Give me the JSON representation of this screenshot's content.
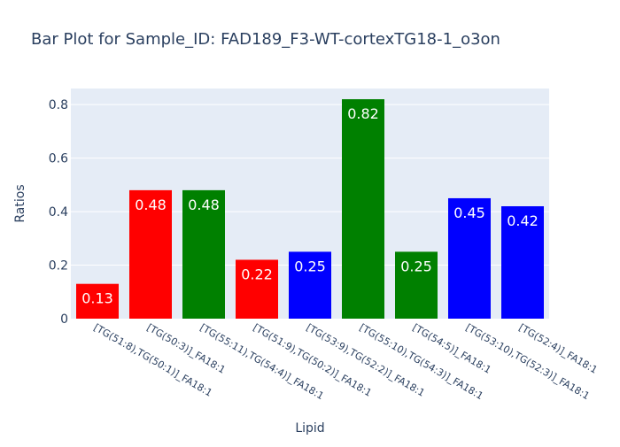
{
  "chart_data": {
    "type": "bar",
    "title": "Bar Plot for Sample_ID: FAD189_F3-WT-cortexTG18-1_o3on",
    "xlabel": "Lipid",
    "ylabel": "Ratios",
    "ylim": [
      0,
      0.86
    ],
    "yticks": [
      0,
      0.2,
      0.4,
      0.6,
      0.8
    ],
    "ytick_labels": [
      "0",
      "0.2",
      "0.4",
      "0.6",
      "0.8"
    ],
    "grid": true,
    "categories": [
      "[TG(51:8),TG(50:1)]_FA18:1",
      "[TG(50:3)]_FA18:1",
      "[TG(55:11),TG(54:4)]_FA18:1",
      "[TG(51:9),TG(50:2)]_FA18:1",
      "[TG(53:9),TG(52:2)]_FA18:1",
      "[TG(55:10),TG(54:3)]_FA18:1",
      "[TG(54:5)]_FA18:1",
      "[TG(53:10),TG(52:3)]_FA18:1",
      "[TG(52:4)]_FA18:1"
    ],
    "values": [
      0.13,
      0.48,
      0.48,
      0.22,
      0.25,
      0.82,
      0.25,
      0.45,
      0.42
    ],
    "value_labels": [
      "0.13",
      "0.48",
      "0.48",
      "0.22",
      "0.25",
      "0.82",
      "0.25",
      "0.45",
      "0.42"
    ],
    "bar_colors": [
      "#ff0000",
      "#ff0000",
      "#008000",
      "#ff0000",
      "#0000ff",
      "#008000",
      "#008000",
      "#0000ff",
      "#0000ff"
    ],
    "colors": {
      "plot_background": "#e5ecf6",
      "grid": "#ffffff",
      "text": "#2a3f5f",
      "bar_label": "#ffffff"
    }
  }
}
